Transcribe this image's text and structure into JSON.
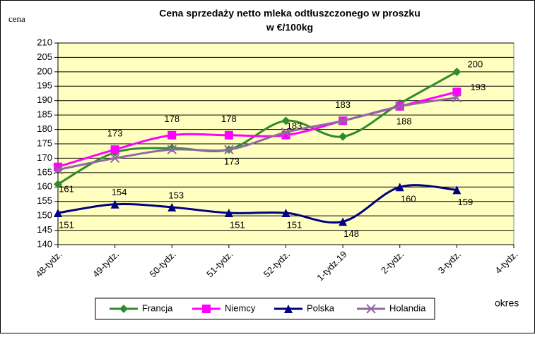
{
  "chart_data": {
    "type": "line",
    "title": "Cena sprzedaży netto mleka odtłuszczonego w proszku",
    "subtitle": "w €/100kg",
    "y_label": "cena",
    "x_label": "okres",
    "categories": [
      "48-tydz.",
      "49-tydz.",
      "50-tydz.",
      "51-tydz.",
      "52-tydz.",
      "1-tydz.19",
      "2-tydz.",
      "3-tydz.",
      "4-tydz."
    ],
    "ylim": [
      140,
      210
    ],
    "yticks": [
      140,
      145,
      150,
      155,
      160,
      165,
      170,
      175,
      180,
      185,
      190,
      195,
      200,
      205,
      210
    ],
    "grid": true,
    "legend": "bottom",
    "series": [
      {
        "name": "Francja",
        "color": "#2e8b2e",
        "marker": "diamond",
        "values": [
          161,
          172,
          173.5,
          173,
          183,
          177.5,
          189,
          200,
          null
        ],
        "value_labels": [
          "161",
          null,
          null,
          "173",
          "183",
          null,
          null,
          "200",
          null
        ]
      },
      {
        "name": "Niemcy",
        "color": "#ff00ff",
        "marker": "square",
        "values": [
          167,
          173,
          178,
          178,
          178,
          183,
          188,
          193,
          null
        ],
        "value_labels": [
          null,
          "173",
          "178",
          "178",
          null,
          "183",
          "188",
          "193",
          null
        ]
      },
      {
        "name": "Polska",
        "color": "#000080",
        "marker": "triangle",
        "values": [
          151,
          154,
          153,
          151,
          151,
          148,
          160,
          159,
          null
        ],
        "value_labels": [
          "151",
          "154",
          "153",
          "151",
          "151",
          "148",
          "160",
          "159",
          null
        ]
      },
      {
        "name": "Holandia",
        "color": "#8e6aa0",
        "marker": "x",
        "values": [
          166,
          170,
          173,
          173,
          179,
          183,
          188,
          191,
          null
        ],
        "value_labels": [
          null,
          null,
          null,
          null,
          null,
          null,
          null,
          null,
          null
        ]
      }
    ]
  }
}
